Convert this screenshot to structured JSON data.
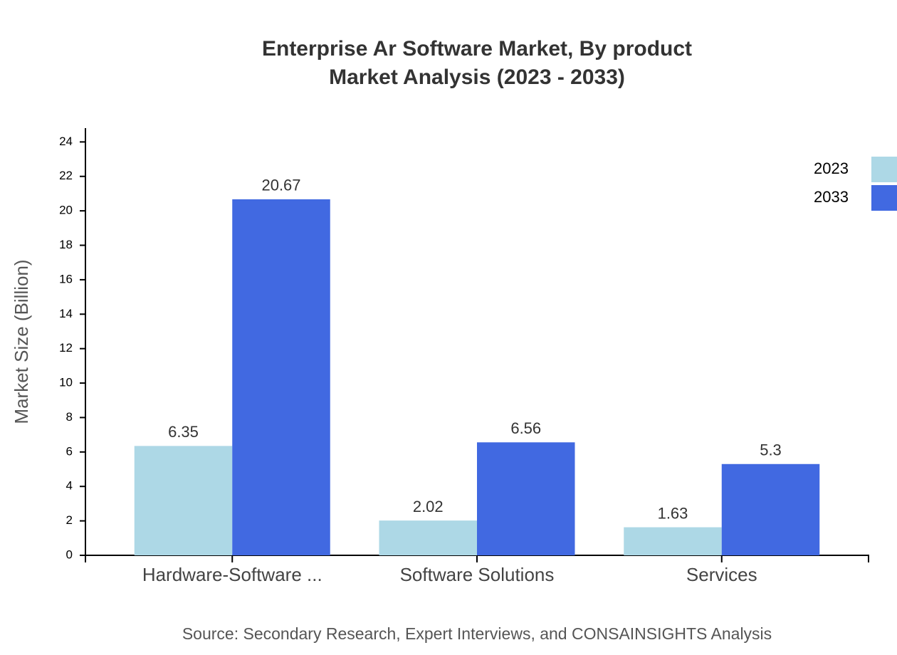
{
  "chart_data": {
    "type": "bar",
    "title": "Enterprise Ar Software Market, By product",
    "subtitle": "Market Analysis (2023 - 2033)",
    "y_label": "Market Size (Billion)",
    "source": "Source: Secondary Research, Expert Interviews, and CONSAINSIGHTS Analysis",
    "categories": [
      "Hardware-Software ...",
      "Software Solutions",
      "Services"
    ],
    "series": [
      {
        "name": "2023",
        "color": "#add8e6",
        "values": [
          6.35,
          2.02,
          1.63
        ]
      },
      {
        "name": "2033",
        "color": "#4169e1",
        "values": [
          20.67,
          6.56,
          5.3
        ]
      }
    ],
    "ylim": [
      0,
      24.8
    ],
    "yticks": [
      0,
      2,
      4,
      6,
      8,
      10,
      12,
      14,
      16,
      18,
      20,
      22,
      24
    ]
  }
}
